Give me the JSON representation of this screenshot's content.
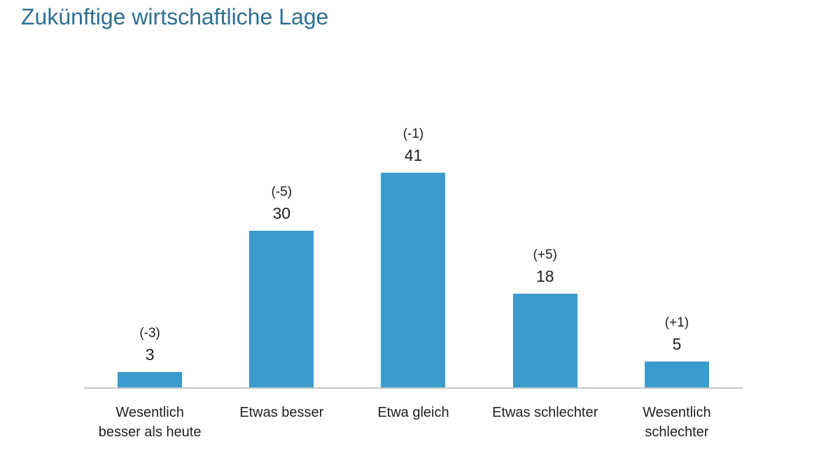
{
  "header": {
    "title": "Zukünftige wirtschaftliche Lage"
  },
  "colors": {
    "bar": "#3a9bce",
    "title_text": "#2e6f93",
    "axis_line": "#c8c8c8",
    "label_text": "#1f1f1f"
  },
  "chart_data": {
    "type": "bar",
    "title": "Zukünftige wirtschaftliche Lage",
    "categories": [
      "Wesentlich besser als heute",
      "Etwas besser",
      "Etwa gleich",
      "Etwas schlechter",
      "Wesentlich schlechter"
    ],
    "category_lines": [
      [
        "Wesentlich",
        "besser als heute"
      ],
      [
        "Etwas besser"
      ],
      [
        "Etwa gleich"
      ],
      [
        "Etwas schlechter"
      ],
      [
        "Wesentlich",
        "schlechter"
      ]
    ],
    "values": [
      3,
      30,
      41,
      18,
      5
    ],
    "data_labels": [
      "3",
      "30",
      "41",
      "18",
      "5"
    ],
    "change_labels": [
      "(-3)",
      "(-5)",
      "(-1)",
      "(+5)",
      "(+1)"
    ],
    "xlabel": "",
    "ylabel": "",
    "ylim": [
      0,
      41
    ],
    "grid": false,
    "legend": false,
    "bar_color": "#3a9bce"
  }
}
